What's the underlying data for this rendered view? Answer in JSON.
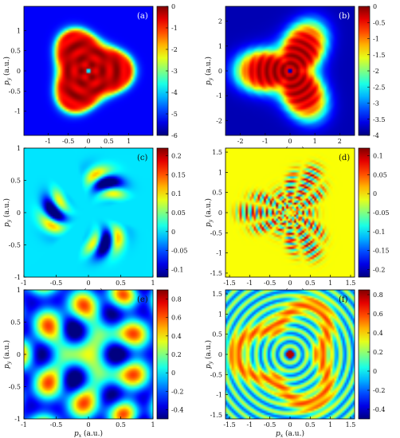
{
  "axis_labels": {
    "x_main": "p",
    "x_sub": "x",
    "y_main": "p",
    "y_sub": "y",
    "unit": " (a.u.)"
  },
  "chart_data": [
    {
      "type": "heatmap",
      "panel_label": "(a)",
      "xlim": [
        -1.6,
        1.6
      ],
      "ylim": [
        -1.6,
        1.6
      ],
      "xticks": [
        -1,
        -0.5,
        0,
        0.5,
        1
      ],
      "yticks": [
        -1,
        -0.5,
        0,
        0.5,
        1
      ],
      "colorbar": {
        "range": [
          -6,
          0
        ],
        "ticks": [
          0,
          -1,
          -2,
          -3,
          -4,
          -5,
          -6
        ]
      },
      "pattern": "triangle-core",
      "colormap": "jet"
    },
    {
      "type": "heatmap",
      "panel_label": "(b)",
      "xlim": [
        -2.6,
        2.6
      ],
      "ylim": [
        -2.6,
        2.6
      ],
      "xticks": [
        -2,
        -1,
        0,
        1,
        2
      ],
      "yticks": [
        -2,
        -1,
        0,
        1,
        2
      ],
      "colorbar": {
        "range": [
          -4,
          0
        ],
        "ticks": [
          0,
          -0.5,
          -1,
          -1.5,
          -2,
          -2.5,
          -3,
          -3.5,
          -4
        ]
      },
      "pattern": "trefoil",
      "colormap": "jet"
    },
    {
      "type": "heatmap",
      "panel_label": "(c)",
      "xlim": [
        -1,
        1
      ],
      "ylim": [
        -1,
        1
      ],
      "xticks": [
        -1,
        -0.5,
        0,
        0.5,
        1
      ],
      "yticks": [
        -1,
        -0.5,
        0,
        0.5,
        1
      ],
      "colorbar": {
        "range": [
          -0.12,
          0.22
        ],
        "ticks": [
          0.2,
          0.15,
          0.1,
          0.05,
          0,
          -0.05,
          -0.1
        ]
      },
      "pattern": "lobes",
      "colormap": "jet"
    },
    {
      "type": "heatmap",
      "panel_label": "(d)",
      "xlim": [
        -1.6,
        1.6
      ],
      "ylim": [
        -1.6,
        1.6
      ],
      "xticks": [
        -1.5,
        -1,
        -0.5,
        0,
        0.5,
        1,
        1.5
      ],
      "yticks": [
        -1.5,
        -1,
        -0.5,
        0,
        0.5,
        1,
        1.5
      ],
      "colorbar": {
        "range": [
          -0.22,
          0.12
        ],
        "ticks": [
          0.1,
          0.05,
          0,
          -0.05,
          -0.1,
          -0.15,
          -0.2
        ]
      },
      "pattern": "fringes-trefoil",
      "colormap": "jet"
    },
    {
      "type": "heatmap",
      "panel_label": "(e)",
      "xlim": [
        -1,
        1
      ],
      "ylim": [
        -1,
        1
      ],
      "xticks": [
        -1,
        -0.5,
        0,
        0.5,
        1
      ],
      "yticks": [
        -1,
        -0.5,
        0,
        0.5,
        1
      ],
      "colorbar": {
        "range": [
          -0.5,
          0.9
        ],
        "ticks": [
          0.8,
          0.6,
          0.4,
          0.2,
          0,
          -0.2,
          -0.4
        ]
      },
      "pattern": "arcs",
      "colormap": "jet"
    },
    {
      "type": "heatmap",
      "panel_label": "(f)",
      "xlim": [
        -1.6,
        1.6
      ],
      "ylim": [
        -1.6,
        1.6
      ],
      "xticks": [
        -1.5,
        -1,
        -0.5,
        0,
        0.5,
        1,
        1.5
      ],
      "yticks": [
        -1.5,
        -1,
        -0.5,
        0,
        0.5,
        1,
        1.5
      ],
      "colorbar": {
        "range": [
          -0.5,
          0.85
        ],
        "ticks": [
          0.8,
          0.6,
          0.4,
          0.2,
          0,
          -0.2,
          -0.4
        ]
      },
      "pattern": "rings-trefoil",
      "colormap": "jet"
    }
  ]
}
